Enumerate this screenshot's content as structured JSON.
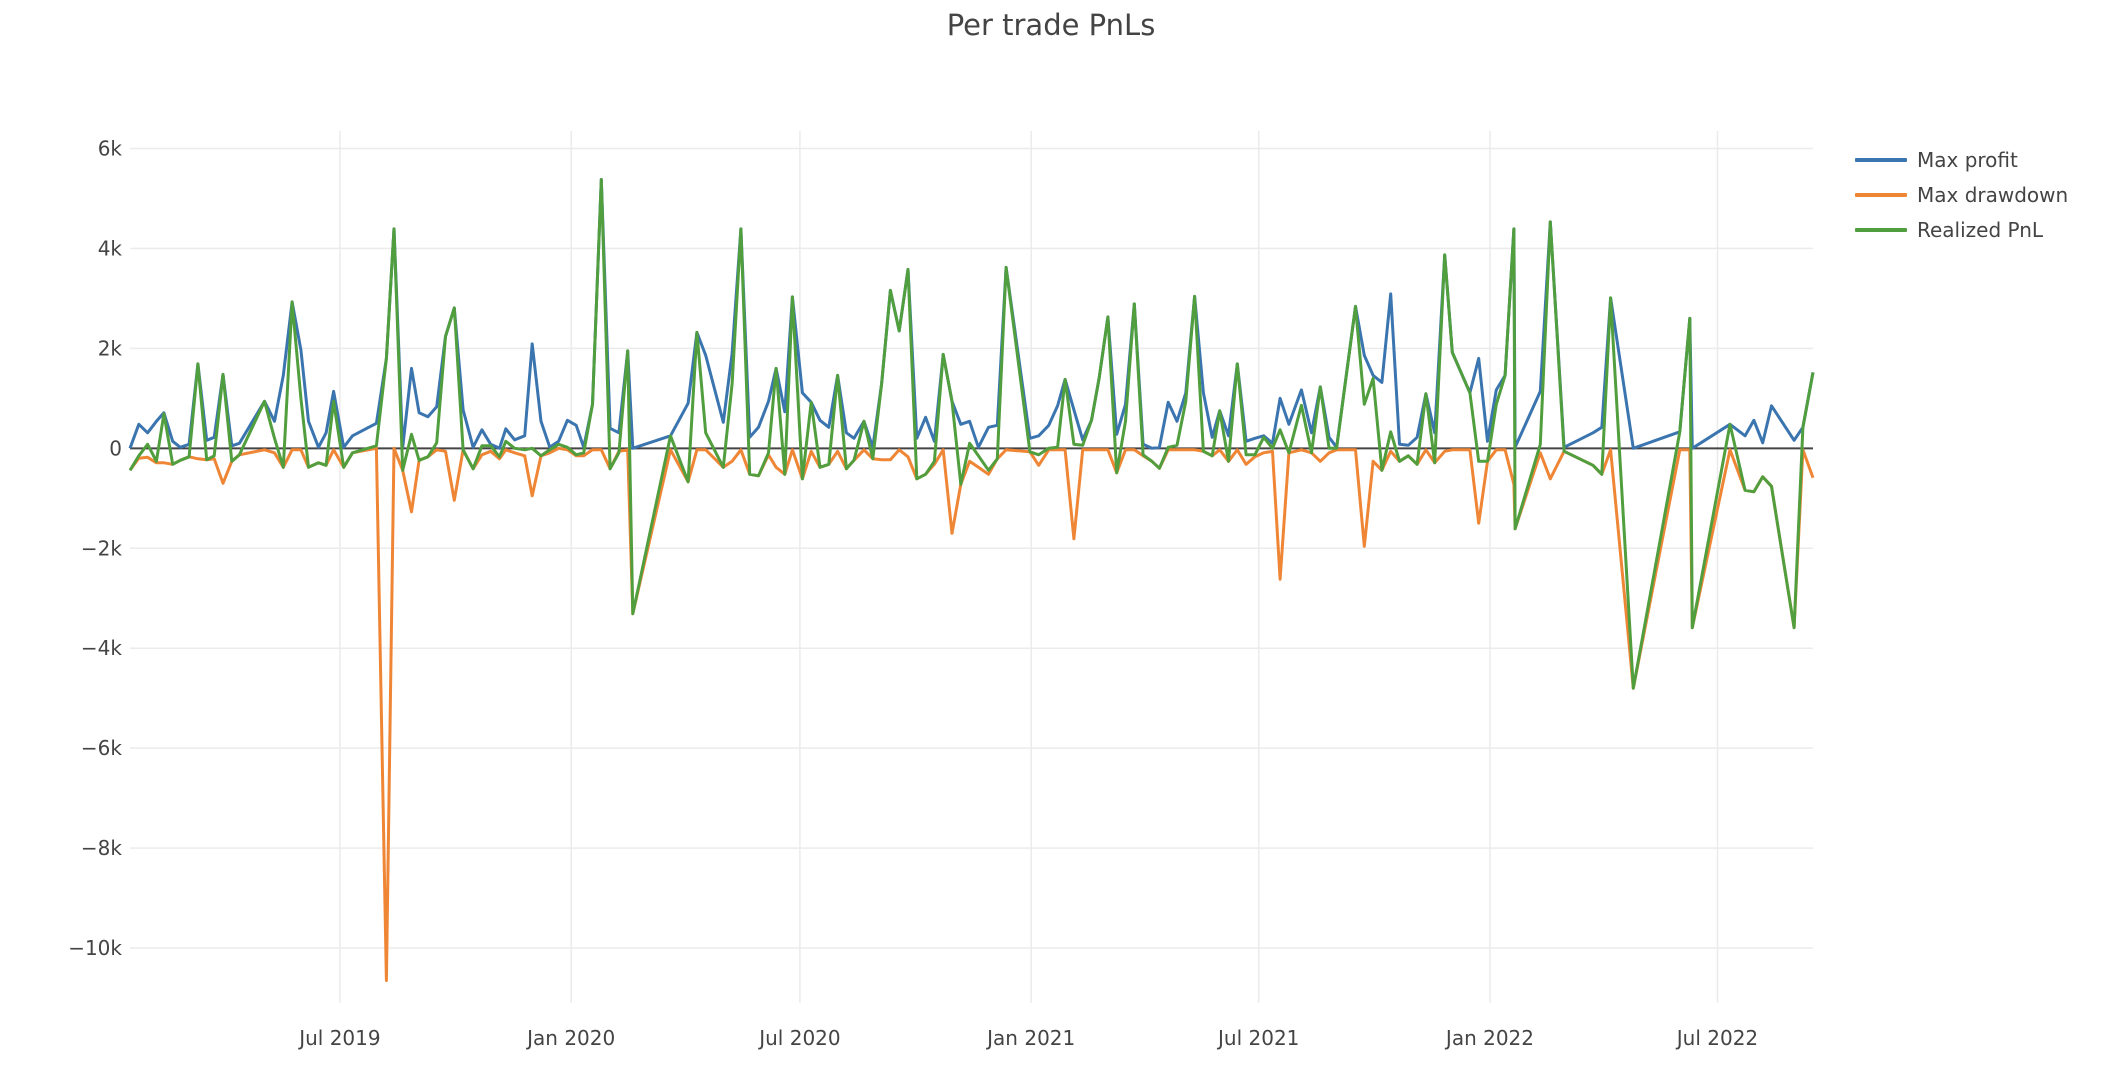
{
  "chart_data": {
    "type": "line",
    "title": "Per trade PnLs",
    "xlabel": "",
    "ylabel": "",
    "xlim": [
      "2019-01-15",
      "2022-09-15"
    ],
    "ylim": [
      -11100,
      6350
    ],
    "grid": true,
    "legend_placement": "top-right",
    "y_ticks": [
      {
        "value": 6000,
        "label": "6k"
      },
      {
        "value": 4000,
        "label": "4k"
      },
      {
        "value": 2000,
        "label": "2k"
      },
      {
        "value": 0,
        "label": "0"
      },
      {
        "value": -2000,
        "label": "−2k"
      },
      {
        "value": -4000,
        "label": "−4k"
      },
      {
        "value": -6000,
        "label": "−6k"
      },
      {
        "value": -8000,
        "label": "−8k"
      },
      {
        "value": -10000,
        "label": "−10k"
      }
    ],
    "x_ticks": [
      {
        "value": "2019-07-01",
        "label": "Jul 2019"
      },
      {
        "value": "2020-01-01",
        "label": "Jan 2020"
      },
      {
        "value": "2020-07-01",
        "label": "Jul 2020"
      },
      {
        "value": "2021-01-01",
        "label": "Jan 2021"
      },
      {
        "value": "2021-07-01",
        "label": "Jul 2021"
      },
      {
        "value": "2022-01-01",
        "label": "Jan 2022"
      },
      {
        "value": "2022-07-01",
        "label": "Jul 2022"
      }
    ],
    "x": [
      "2019-01-15",
      "2019-01-22",
      "2019-01-29",
      "2019-02-05",
      "2019-02-11",
      "2019-02-18",
      "2019-02-24",
      "2019-03-03",
      "2019-03-10",
      "2019-03-17",
      "2019-03-23",
      "2019-03-30",
      "2019-04-06",
      "2019-04-12",
      "2019-05-02",
      "2019-05-10",
      "2019-05-17",
      "2019-05-24",
      "2019-05-31",
      "2019-06-06",
      "2019-06-14",
      "2019-06-20",
      "2019-06-26",
      "2019-07-04",
      "2019-07-11",
      "2019-07-30",
      "2019-08-07",
      "2019-08-13",
      "2019-08-20",
      "2019-08-27",
      "2019-09-02",
      "2019-09-09",
      "2019-09-16",
      "2019-09-23",
      "2019-09-30",
      "2019-10-07",
      "2019-10-15",
      "2019-10-22",
      "2019-10-29",
      "2019-11-05",
      "2019-11-10",
      "2019-11-17",
      "2019-11-25",
      "2019-12-01",
      "2019-12-08",
      "2019-12-15",
      "2019-12-22",
      "2019-12-29",
      "2020-01-05",
      "2020-01-11",
      "2020-01-18",
      "2020-01-25",
      "2020-02-01",
      "2020-02-08",
      "2020-02-15",
      "2020-02-19",
      "2020-03-20",
      "2020-04-03",
      "2020-04-10",
      "2020-04-17",
      "2020-05-01",
      "2020-05-08",
      "2020-05-15",
      "2020-05-22",
      "2020-05-29",
      "2020-06-06",
      "2020-06-12",
      "2020-06-19",
      "2020-06-25",
      "2020-07-03",
      "2020-07-10",
      "2020-07-17",
      "2020-07-24",
      "2020-07-31",
      "2020-08-07",
      "2020-08-13",
      "2020-08-21",
      "2020-08-28",
      "2020-09-04",
      "2020-09-11",
      "2020-09-18",
      "2020-09-25",
      "2020-10-02",
      "2020-10-09",
      "2020-10-16",
      "2020-10-23",
      "2020-10-30",
      "2020-11-06",
      "2020-11-13",
      "2020-11-20",
      "2020-11-28",
      "2020-12-05",
      "2020-12-12",
      "2020-12-31",
      "2021-01-07",
      "2021-01-15",
      "2021-01-22",
      "2021-01-28",
      "2021-02-04",
      "2021-02-11",
      "2021-02-18",
      "2021-02-24",
      "2021-03-03",
      "2021-03-10",
      "2021-03-17",
      "2021-03-24",
      "2021-03-31",
      "2021-04-07",
      "2021-04-13",
      "2021-04-20",
      "2021-04-27",
      "2021-05-04",
      "2021-05-11",
      "2021-05-18",
      "2021-05-25",
      "2021-05-31",
      "2021-06-07",
      "2021-06-14",
      "2021-06-21",
      "2021-06-28",
      "2021-07-05",
      "2021-07-12",
      "2021-07-18",
      "2021-07-25",
      "2021-08-04",
      "2021-08-12",
      "2021-08-19",
      "2021-08-26",
      "2021-09-01",
      "2021-09-16",
      "2021-09-23",
      "2021-09-30",
      "2021-10-07",
      "2021-10-14",
      "2021-10-21",
      "2021-10-28",
      "2021-11-04",
      "2021-11-11",
      "2021-11-18",
      "2021-11-26",
      "2021-12-02",
      "2021-12-16",
      "2021-12-23",
      "2021-12-30",
      "2022-01-06",
      "2022-01-13",
      "2022-01-20",
      "2022-01-21",
      "2022-02-10",
      "2022-02-18",
      "2022-03-01",
      "2022-03-24",
      "2022-03-31",
      "2022-04-07",
      "2022-04-25",
      "2022-06-01",
      "2022-06-09",
      "2022-06-11",
      "2022-07-11",
      "2022-07-23",
      "2022-07-30",
      "2022-08-06",
      "2022-08-13",
      "2022-08-31",
      "2022-09-07",
      "2022-09-15"
    ],
    "series": [
      {
        "name": "Max profit",
        "color": "#3b75af",
        "values": [
          0,
          480,
          310,
          540,
          710,
          140,
          20,
          80,
          1690,
          160,
          220,
          1480,
          50,
          100,
          940,
          540,
          1460,
          2930,
          1970,
          540,
          20,
          310,
          1140,
          20,
          250,
          500,
          1800,
          4390,
          20,
          1600,
          710,
          630,
          830,
          2240,
          2810,
          770,
          20,
          370,
          80,
          0,
          390,
          170,
          250,
          2090,
          540,
          20,
          140,
          560,
          460,
          20,
          880,
          5380,
          400,
          310,
          1950,
          0,
          250,
          900,
          2320,
          1860,
          520,
          1900,
          4390,
          220,
          420,
          940,
          1600,
          730,
          3030,
          1110,
          920,
          560,
          420,
          1460,
          310,
          200,
          540,
          20,
          1290,
          3160,
          2350,
          3580,
          200,
          620,
          140,
          1880,
          940,
          480,
          540,
          20,
          420,
          460,
          3620,
          200,
          250,
          460,
          850,
          1380,
          770,
          170,
          560,
          1400,
          2630,
          280,
          880,
          2890,
          80,
          0,
          20,
          920,
          540,
          1110,
          3040,
          1110,
          220,
          750,
          250,
          1690,
          140,
          200,
          250,
          100,
          1000,
          480,
          1170,
          310,
          1230,
          220,
          20,
          2840,
          1860,
          1460,
          1320,
          3090,
          80,
          60,
          220,
          1090,
          310,
          3870,
          1920,
          1110,
          1800,
          140,
          1170,
          1460,
          4390,
          20,
          1140,
          4530,
          20,
          310,
          420,
          3010,
          0,
          330,
          2600,
          0,
          480,
          250,
          560,
          110,
          850,
          160,
          420,
          1520
        ]
      },
      {
        "name": "Max drawdown",
        "color": "#ef8636",
        "values": [
          -440,
          -200,
          -180,
          -290,
          -290,
          -320,
          -240,
          -170,
          -210,
          -230,
          -210,
          -700,
          -260,
          -130,
          -30,
          -90,
          -380,
          -30,
          -30,
          -380,
          -290,
          -340,
          -30,
          -380,
          -90,
          0,
          -10650,
          0,
          -440,
          -1270,
          -240,
          -170,
          -30,
          -60,
          -1040,
          -30,
          -410,
          -130,
          -60,
          -210,
          -30,
          -90,
          -150,
          -950,
          -150,
          -90,
          0,
          -30,
          -150,
          -150,
          -30,
          -30,
          -410,
          -60,
          -30,
          -3310,
          -30,
          -670,
          -30,
          -30,
          -380,
          -260,
          -30,
          -520,
          -550,
          -130,
          -380,
          -520,
          -30,
          -610,
          -60,
          -380,
          -320,
          -60,
          -410,
          -240,
          -30,
          -210,
          -230,
          -230,
          -30,
          -170,
          -610,
          -520,
          -320,
          -30,
          -1700,
          -720,
          -260,
          -380,
          -520,
          -210,
          -30,
          -70,
          -340,
          -30,
          -30,
          -30,
          -1810,
          -30,
          -30,
          -30,
          -30,
          -490,
          -30,
          -30,
          -150,
          -260,
          -400,
          -30,
          -30,
          -30,
          -30,
          -60,
          -150,
          -30,
          -260,
          -30,
          -320,
          -170,
          -90,
          -60,
          -2620,
          -90,
          -30,
          -90,
          -260,
          -90,
          -30,
          -30,
          -1960,
          -260,
          -440,
          -60,
          -260,
          -150,
          -320,
          -30,
          -290,
          -60,
          -30,
          -30,
          -1500,
          -260,
          -30,
          -30,
          -720,
          -1610,
          -90,
          -610,
          -60,
          -340,
          -520,
          -30,
          -4800,
          -30,
          -30,
          -3590,
          -30,
          -840,
          -870,
          -570,
          -760,
          -3590,
          -30,
          -590
        ]
      },
      {
        "name": "Realized PnL",
        "color": "#519e3e",
        "values": [
          -440,
          -150,
          80,
          -260,
          690,
          -320,
          -240,
          -170,
          1690,
          -230,
          -150,
          1480,
          -260,
          -130,
          940,
          200,
          -380,
          2930,
          1000,
          -380,
          -290,
          -340,
          940,
          -380,
          -90,
          50,
          1800,
          4390,
          -440,
          280,
          -240,
          -170,
          110,
          2240,
          2810,
          -30,
          -410,
          50,
          50,
          -170,
          140,
          0,
          -30,
          0,
          -150,
          -30,
          80,
          20,
          -130,
          -90,
          880,
          5380,
          -410,
          -90,
          1950,
          -3310,
          250,
          -670,
          2320,
          310,
          -380,
          1290,
          4390,
          -520,
          -550,
          -90,
          1600,
          -520,
          3030,
          -610,
          920,
          -380,
          -320,
          1460,
          -410,
          -240,
          540,
          -210,
          1290,
          3160,
          2350,
          3580,
          -610,
          -520,
          -260,
          1880,
          940,
          -720,
          100,
          -150,
          -440,
          -210,
          3620,
          -70,
          -130,
          0,
          20,
          1380,
          80,
          60,
          560,
          1400,
          2630,
          -490,
          540,
          2890,
          -130,
          -260,
          -400,
          20,
          60,
          940,
          3040,
          -60,
          -150,
          750,
          -260,
          1690,
          -130,
          -130,
          220,
          0,
          370,
          -90,
          860,
          -90,
          1230,
          0,
          0,
          2840,
          880,
          1400,
          -440,
          330,
          -260,
          -150,
          -320,
          1090,
          -290,
          3870,
          1920,
          1110,
          -260,
          -260,
          880,
          1460,
          4390,
          -1610,
          80,
          4530,
          -60,
          -340,
          -520,
          3010,
          -4800,
          330,
          2600,
          -3590,
          480,
          -840,
          -870,
          -570,
          -760,
          -3590,
          420,
          1520
        ]
      }
    ]
  }
}
